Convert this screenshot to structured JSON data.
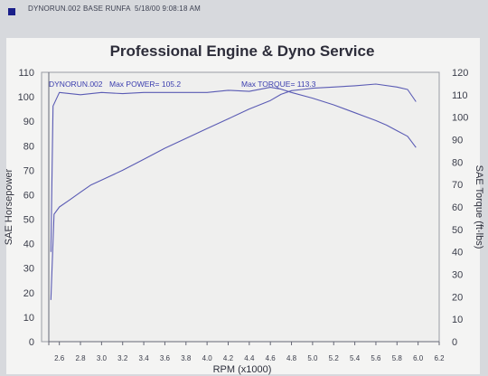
{
  "header": {
    "file": "DYNORUN.002",
    "run": "BASE RUNFA",
    "timestamp": "5/18/00 9:08:18 AM"
  },
  "colors": {
    "background": "#d7d9dd",
    "plot_area": "#f0f0ef",
    "series": "#5a5bb4",
    "annotation": "#3a3dae",
    "marker": "#1a1f8a"
  },
  "chart_data": {
    "type": "line",
    "title": "Professional Engine & Dyno Service",
    "xlabel": "RPM (x1000)",
    "ylabel_left": "SAE Horsepower",
    "ylabel_right": "SAE Torque (ft-lbs)",
    "xlim": [
      2.5,
      6.2
    ],
    "ylim_left": [
      0,
      110
    ],
    "ylim_right": [
      0,
      120
    ],
    "x_ticks": [
      "2.6",
      "2.8",
      "3.0",
      "3.2",
      "3.4",
      "3.6",
      "3.8",
      "4.0",
      "4.2",
      "4.4",
      "4.6",
      "4.8",
      "5.0",
      "5.2",
      "5.4",
      "5.6",
      "5.8",
      "6.0",
      "6.2"
    ],
    "y_ticks_left": [
      "0",
      "10",
      "20",
      "30",
      "40",
      "50",
      "60",
      "70",
      "80",
      "90",
      "100",
      "110"
    ],
    "y_ticks_right": [
      "0",
      "10",
      "20",
      "30",
      "40",
      "50",
      "60",
      "70",
      "80",
      "90",
      "100",
      "110",
      "120"
    ],
    "grid": false,
    "annotations": {
      "run_name": "DYNORUN.002",
      "max_power": "Max POWER= 105.2",
      "max_torque": "Max TORQUE= 113.3"
    },
    "series": [
      {
        "axis": "left",
        "x": [
          2.52,
          2.55,
          2.6,
          2.7,
          2.8,
          2.9,
          3.0,
          3.2,
          3.4,
          3.6,
          3.8,
          4.0,
          4.2,
          4.4,
          4.6,
          4.7,
          4.8,
          4.9,
          5.0,
          5.2,
          5.4,
          5.6,
          5.8,
          5.9,
          5.98
        ],
        "y": [
          17,
          52,
          55,
          58,
          61,
          64,
          66,
          70,
          74.5,
          79,
          83,
          87,
          91,
          95,
          98.5,
          101,
          102.5,
          103,
          103.5,
          104,
          104.5,
          105.2,
          104,
          103,
          98
        ]
      },
      {
        "axis": "right",
        "x": [
          2.52,
          2.54,
          2.6,
          2.8,
          3.0,
          3.2,
          3.4,
          3.6,
          3.8,
          4.0,
          4.2,
          4.4,
          4.6,
          4.7,
          4.8,
          5.0,
          5.2,
          5.4,
          5.6,
          5.7,
          5.8,
          5.9,
          5.98
        ],
        "y": [
          40,
          105,
          111,
          110,
          111,
          110.5,
          111,
          111,
          111,
          111,
          112,
          111.5,
          113.3,
          112.5,
          111,
          108.5,
          105.5,
          102,
          98.5,
          96.5,
          94,
          91.5,
          86.5
        ]
      }
    ]
  }
}
